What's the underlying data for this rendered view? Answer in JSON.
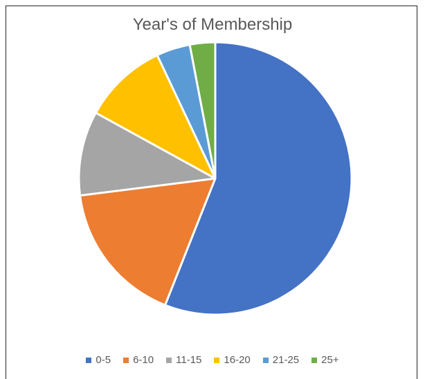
{
  "chart_data": {
    "type": "pie",
    "title": "Year's of Membership",
    "categories": [
      "0-5",
      "6-10",
      "11-15",
      "16-20",
      "21-25",
      "25+"
    ],
    "values": [
      56,
      17,
      10,
      10,
      4,
      3
    ],
    "colors": [
      "#4472C4",
      "#ED7D31",
      "#A5A5A5",
      "#FFC000",
      "#5B9BD5",
      "#70AD47"
    ],
    "legend_position": "bottom",
    "start_angle": "top",
    "direction": "clockwise"
  }
}
